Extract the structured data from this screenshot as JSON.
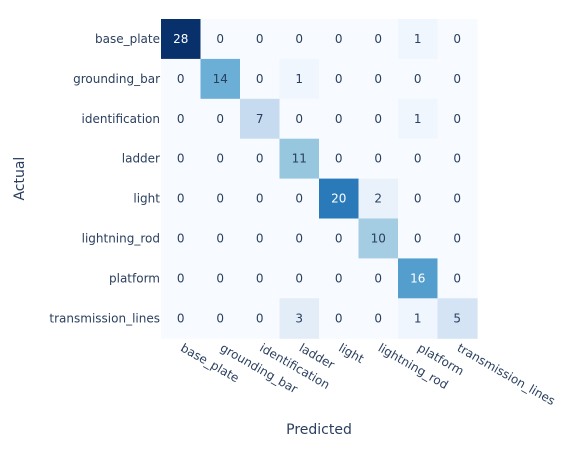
{
  "chart_data": {
    "type": "heatmap",
    "title": "",
    "xlabel": "Predicted",
    "ylabel": "Actual",
    "colorscale": "Blues",
    "x_categories": [
      "base_plate",
      "grounding_bar",
      "identification",
      "ladder",
      "light",
      "lightning_rod",
      "platform",
      "transmission_lines"
    ],
    "y_categories": [
      "base_plate",
      "grounding_bar",
      "identification",
      "ladder",
      "light",
      "lightning_rod",
      "platform",
      "transmission_lines"
    ],
    "z": [
      [
        28,
        0,
        0,
        0,
        0,
        0,
        1,
        0
      ],
      [
        0,
        14,
        0,
        1,
        0,
        0,
        0,
        0
      ],
      [
        0,
        0,
        7,
        0,
        0,
        0,
        1,
        0
      ],
      [
        0,
        0,
        0,
        11,
        0,
        0,
        0,
        0
      ],
      [
        0,
        0,
        0,
        0,
        20,
        2,
        0,
        0
      ],
      [
        0,
        0,
        0,
        0,
        0,
        10,
        0,
        0
      ],
      [
        0,
        0,
        0,
        0,
        0,
        0,
        16,
        0
      ],
      [
        0,
        0,
        0,
        3,
        0,
        0,
        1,
        5
      ]
    ],
    "zmin": 0,
    "zmax": 28,
    "grid": false
  }
}
